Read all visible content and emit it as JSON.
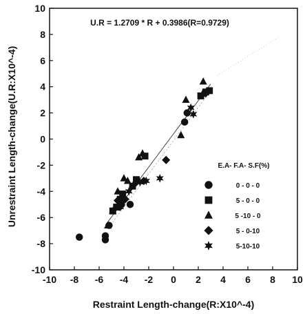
{
  "chart_data": {
    "type": "scatter",
    "title": "",
    "annotation": "U.R = 1.2709 * R + 0.3986(R=0.9729)",
    "xlabel": "Restraint Length-change(R:X10^-4)",
    "ylabel": "Unrestraint Length-change(U.R:X10^-4)",
    "xlim": [
      -10,
      10
    ],
    "ylim": [
      -10,
      10
    ],
    "xticks": [
      -10,
      -8,
      -6,
      -4,
      -2,
      0,
      2,
      4,
      6,
      8,
      10
    ],
    "yticks": [
      -10,
      -8,
      -6,
      -4,
      -2,
      0,
      2,
      4,
      6,
      8,
      10
    ],
    "grid": false,
    "legend_title": "E.A- F.A- S.F(%)",
    "legend_position": "lower-right",
    "fit_line": {
      "slope": 1.2709,
      "intercept": 0.3986,
      "x_range": [
        -5.5,
        3.0
      ]
    },
    "series": [
      {
        "name": "0 - 0 - 0",
        "marker": "circle",
        "points": [
          [
            -7.6,
            -7.5
          ],
          [
            -5.5,
            -7.4
          ],
          [
            -5.5,
            -7.7
          ],
          [
            -5.2,
            -6.6
          ],
          [
            -4.4,
            -5.2
          ],
          [
            -4.2,
            -5.0
          ],
          [
            -3.5,
            -5.0
          ],
          [
            0.9,
            1.3
          ],
          [
            1.1,
            2.0
          ]
        ]
      },
      {
        "name": "5 - 0 - 0",
        "marker": "square",
        "points": [
          [
            -4.9,
            -5.5
          ],
          [
            -4.6,
            -5.2
          ],
          [
            -4.3,
            -4.6
          ],
          [
            -4.1,
            -4.2
          ],
          [
            -3.3,
            -3.6
          ],
          [
            -3.0,
            -3.1
          ],
          [
            -2.3,
            -1.3
          ],
          [
            2.2,
            3.3
          ],
          [
            2.6,
            3.6
          ],
          [
            2.9,
            3.7
          ]
        ]
      },
      {
        "name": "5 -10 - 0",
        "marker": "triangle",
        "points": [
          [
            -5.3,
            -6.6
          ],
          [
            -4.9,
            -5.5
          ],
          [
            -4.5,
            -4.0
          ],
          [
            -4.0,
            -3.0
          ],
          [
            -3.7,
            -3.2
          ],
          [
            -2.8,
            -1.4
          ],
          [
            -2.5,
            -1.1
          ],
          [
            0.6,
            0.3
          ],
          [
            1.0,
            3.0
          ],
          [
            2.4,
            4.4
          ]
        ]
      },
      {
        "name": "5 - 0-10",
        "marker": "diamond",
        "points": [
          [
            -4.5,
            -4.7
          ],
          [
            -3.9,
            -4.6
          ],
          [
            -3.0,
            -3.3
          ],
          [
            -2.4,
            -3.2
          ],
          [
            -0.6,
            -1.6
          ],
          [
            2.6,
            3.5
          ]
        ]
      },
      {
        "name": "5-10-10",
        "marker": "star",
        "points": [
          [
            -4.3,
            -5.2
          ],
          [
            -3.6,
            -4.0
          ],
          [
            -2.7,
            -3.3
          ],
          [
            -2.2,
            -3.2
          ],
          [
            -1.1,
            -3.0
          ],
          [
            1.4,
            2.4
          ],
          [
            1.6,
            1.9
          ],
          [
            2.3,
            3.4
          ]
        ]
      }
    ]
  }
}
